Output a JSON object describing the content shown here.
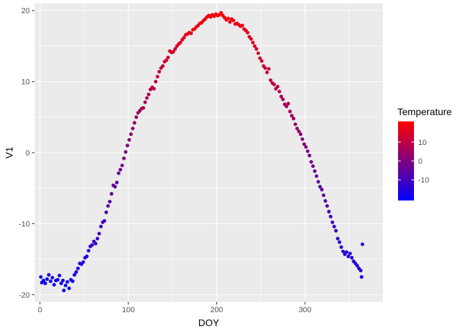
{
  "chart_data": {
    "type": "scatter",
    "title": "",
    "xlabel": "DOY",
    "ylabel": "V1",
    "xlim": [
      -6,
      388
    ],
    "ylim": [
      -21,
      21
    ],
    "x_ticks": [
      0,
      100,
      200,
      300
    ],
    "x_tick_labels": [
      "0",
      "100",
      "200",
      "300"
    ],
    "y_ticks": [
      -20,
      -10,
      0,
      10,
      20
    ],
    "y_tick_labels": [
      "-20",
      "-10",
      "0",
      "10",
      "20"
    ],
    "grid": true,
    "panel_background": "#ebebeb",
    "grid_color": "#ffffff",
    "color_scale": {
      "title": "Temperature",
      "low_color": "#0000ff",
      "high_color": "#ff0000",
      "range": [
        -21,
        21
      ],
      "breaks": [
        10,
        0,
        -10
      ],
      "break_labels": [
        "10",
        "0",
        "-10"
      ]
    },
    "legend_position": "right",
    "points": [
      {
        "x": 1,
        "y": -17.5
      },
      {
        "x": 2,
        "y": -18.3
      },
      {
        "x": 4,
        "y": -18.0
      },
      {
        "x": 6,
        "y": -18.4
      },
      {
        "x": 8,
        "y": -17.8
      },
      {
        "x": 10,
        "y": -17.2
      },
      {
        "x": 12,
        "y": -18.1
      },
      {
        "x": 14,
        "y": -17.6
      },
      {
        "x": 16,
        "y": -18.6
      },
      {
        "x": 18,
        "y": -18.0
      },
      {
        "x": 20,
        "y": -17.9
      },
      {
        "x": 22,
        "y": -17.3
      },
      {
        "x": 24,
        "y": -18.4
      },
      {
        "x": 26,
        "y": -18.0
      },
      {
        "x": 27,
        "y": -19.4
      },
      {
        "x": 29,
        "y": -18.7
      },
      {
        "x": 31,
        "y": -18.2
      },
      {
        "x": 33,
        "y": -19.1
      },
      {
        "x": 35,
        "y": -17.9
      },
      {
        "x": 37,
        "y": -18.1
      },
      {
        "x": 39,
        "y": -17.2
      },
      {
        "x": 41,
        "y": -16.8
      },
      {
        "x": 43,
        "y": -16.3
      },
      {
        "x": 45,
        "y": -15.6
      },
      {
        "x": 47,
        "y": -15.7
      },
      {
        "x": 49,
        "y": -15.4
      },
      {
        "x": 51,
        "y": -14.8
      },
      {
        "x": 53,
        "y": -14.6
      },
      {
        "x": 55,
        "y": -13.8
      },
      {
        "x": 57,
        "y": -13.2
      },
      {
        "x": 59,
        "y": -13.0
      },
      {
        "x": 61,
        "y": -12.5
      },
      {
        "x": 63,
        "y": -12.8
      },
      {
        "x": 65,
        "y": -12.1
      },
      {
        "x": 67,
        "y": -11.4
      },
      {
        "x": 69,
        "y": -10.4
      },
      {
        "x": 71,
        "y": -9.8
      },
      {
        "x": 73,
        "y": -9.6
      },
      {
        "x": 75,
        "y": -8.4
      },
      {
        "x": 77,
        "y": -7.5
      },
      {
        "x": 79,
        "y": -6.9
      },
      {
        "x": 81,
        "y": -5.8
      },
      {
        "x": 83,
        "y": -4.6
      },
      {
        "x": 85,
        "y": -4.8
      },
      {
        "x": 87,
        "y": -4.2
      },
      {
        "x": 89,
        "y": -2.9
      },
      {
        "x": 91,
        "y": -2.4
      },
      {
        "x": 93,
        "y": -1.8
      },
      {
        "x": 95,
        "y": -0.8
      },
      {
        "x": 97,
        "y": 0.1
      },
      {
        "x": 99,
        "y": 1.0
      },
      {
        "x": 101,
        "y": 1.8
      },
      {
        "x": 103,
        "y": 2.6
      },
      {
        "x": 105,
        "y": 3.4
      },
      {
        "x": 107,
        "y": 4.2
      },
      {
        "x": 109,
        "y": 5.0
      },
      {
        "x": 111,
        "y": 5.6
      },
      {
        "x": 113,
        "y": 5.9
      },
      {
        "x": 115,
        "y": 6.2
      },
      {
        "x": 117,
        "y": 6.3
      },
      {
        "x": 119,
        "y": 7.1
      },
      {
        "x": 121,
        "y": 7.7
      },
      {
        "x": 123,
        "y": 8.2
      },
      {
        "x": 125,
        "y": 8.9
      },
      {
        "x": 127,
        "y": 9.2
      },
      {
        "x": 129,
        "y": 9.0
      },
      {
        "x": 131,
        "y": 10.0
      },
      {
        "x": 133,
        "y": 10.7
      },
      {
        "x": 135,
        "y": 11.4
      },
      {
        "x": 137,
        "y": 11.9
      },
      {
        "x": 139,
        "y": 12.2
      },
      {
        "x": 141,
        "y": 12.8
      },
      {
        "x": 143,
        "y": 13.0
      },
      {
        "x": 145,
        "y": 13.4
      },
      {
        "x": 147,
        "y": 14.3
      },
      {
        "x": 149,
        "y": 14.1
      },
      {
        "x": 151,
        "y": 14.2
      },
      {
        "x": 153,
        "y": 14.6
      },
      {
        "x": 155,
        "y": 15.0
      },
      {
        "x": 157,
        "y": 15.3
      },
      {
        "x": 159,
        "y": 15.5
      },
      {
        "x": 161,
        "y": 15.9
      },
      {
        "x": 163,
        "y": 16.2
      },
      {
        "x": 165,
        "y": 16.6
      },
      {
        "x": 167,
        "y": 16.7
      },
      {
        "x": 169,
        "y": 16.9
      },
      {
        "x": 171,
        "y": 16.8
      },
      {
        "x": 173,
        "y": 17.3
      },
      {
        "x": 175,
        "y": 17.4
      },
      {
        "x": 177,
        "y": 17.7
      },
      {
        "x": 179,
        "y": 17.9
      },
      {
        "x": 181,
        "y": 18.2
      },
      {
        "x": 183,
        "y": 18.3
      },
      {
        "x": 185,
        "y": 18.6
      },
      {
        "x": 187,
        "y": 18.8
      },
      {
        "x": 189,
        "y": 19.1
      },
      {
        "x": 191,
        "y": 19.3
      },
      {
        "x": 193,
        "y": 19.1
      },
      {
        "x": 195,
        "y": 19.4
      },
      {
        "x": 197,
        "y": 19.2
      },
      {
        "x": 199,
        "y": 19.5
      },
      {
        "x": 201,
        "y": 19.3
      },
      {
        "x": 203,
        "y": 19.4
      },
      {
        "x": 205,
        "y": 19.7
      },
      {
        "x": 207,
        "y": 19.3
      },
      {
        "x": 209,
        "y": 19.0
      },
      {
        "x": 211,
        "y": 18.7
      },
      {
        "x": 213,
        "y": 18.9
      },
      {
        "x": 215,
        "y": 18.4
      },
      {
        "x": 217,
        "y": 18.8
      },
      {
        "x": 219,
        "y": 18.6
      },
      {
        "x": 221,
        "y": 18.1
      },
      {
        "x": 223,
        "y": 18.2
      },
      {
        "x": 225,
        "y": 18.0
      },
      {
        "x": 227,
        "y": 17.8
      },
      {
        "x": 229,
        "y": 17.9
      },
      {
        "x": 231,
        "y": 17.4
      },
      {
        "x": 233,
        "y": 17.2
      },
      {
        "x": 235,
        "y": 16.9
      },
      {
        "x": 237,
        "y": 16.3
      },
      {
        "x": 239,
        "y": 16.0
      },
      {
        "x": 241,
        "y": 15.5
      },
      {
        "x": 243,
        "y": 15.0
      },
      {
        "x": 245,
        "y": 14.6
      },
      {
        "x": 247,
        "y": 14.0
      },
      {
        "x": 249,
        "y": 13.3
      },
      {
        "x": 251,
        "y": 12.9
      },
      {
        "x": 253,
        "y": 12.2
      },
      {
        "x": 255,
        "y": 11.9
      },
      {
        "x": 257,
        "y": 11.3
      },
      {
        "x": 259,
        "y": 11.8
      },
      {
        "x": 261,
        "y": 10.2
      },
      {
        "x": 263,
        "y": 9.8
      },
      {
        "x": 265,
        "y": 9.6
      },
      {
        "x": 267,
        "y": 9.0
      },
      {
        "x": 269,
        "y": 9.3
      },
      {
        "x": 271,
        "y": 8.6
      },
      {
        "x": 273,
        "y": 7.9
      },
      {
        "x": 275,
        "y": 7.5
      },
      {
        "x": 277,
        "y": 6.8
      },
      {
        "x": 279,
        "y": 6.5
      },
      {
        "x": 281,
        "y": 6.9
      },
      {
        "x": 283,
        "y": 5.8
      },
      {
        "x": 285,
        "y": 5.2
      },
      {
        "x": 287,
        "y": 4.8
      },
      {
        "x": 289,
        "y": 4.0
      },
      {
        "x": 291,
        "y": 3.4
      },
      {
        "x": 293,
        "y": 3.0
      },
      {
        "x": 295,
        "y": 2.6
      },
      {
        "x": 297,
        "y": 1.9
      },
      {
        "x": 299,
        "y": 1.2
      },
      {
        "x": 301,
        "y": 0.8
      },
      {
        "x": 303,
        "y": 0.2
      },
      {
        "x": 305,
        "y": -0.4
      },
      {
        "x": 307,
        "y": -1.3
      },
      {
        "x": 309,
        "y": -1.9
      },
      {
        "x": 311,
        "y": -2.6
      },
      {
        "x": 313,
        "y": -3.3
      },
      {
        "x": 315,
        "y": -4.1
      },
      {
        "x": 317,
        "y": -4.8
      },
      {
        "x": 319,
        "y": -5.2
      },
      {
        "x": 321,
        "y": -6.0
      },
      {
        "x": 323,
        "y": -6.8
      },
      {
        "x": 325,
        "y": -7.5
      },
      {
        "x": 327,
        "y": -8.3
      },
      {
        "x": 329,
        "y": -9.0
      },
      {
        "x": 331,
        "y": -9.8
      },
      {
        "x": 333,
        "y": -10.4
      },
      {
        "x": 335,
        "y": -11.0
      },
      {
        "x": 337,
        "y": -12.1
      },
      {
        "x": 339,
        "y": -12.6
      },
      {
        "x": 341,
        "y": -13.3
      },
      {
        "x": 343,
        "y": -13.9
      },
      {
        "x": 345,
        "y": -14.3
      },
      {
        "x": 347,
        "y": -14.0
      },
      {
        "x": 349,
        "y": -14.6
      },
      {
        "x": 351,
        "y": -14.2
      },
      {
        "x": 353,
        "y": -14.8
      },
      {
        "x": 355,
        "y": -15.3
      },
      {
        "x": 357,
        "y": -15.6
      },
      {
        "x": 359,
        "y": -15.9
      },
      {
        "x": 361,
        "y": -16.3
      },
      {
        "x": 363,
        "y": -16.6
      },
      {
        "x": 364,
        "y": -17.5
      },
      {
        "x": 365,
        "y": -12.9
      }
    ]
  }
}
